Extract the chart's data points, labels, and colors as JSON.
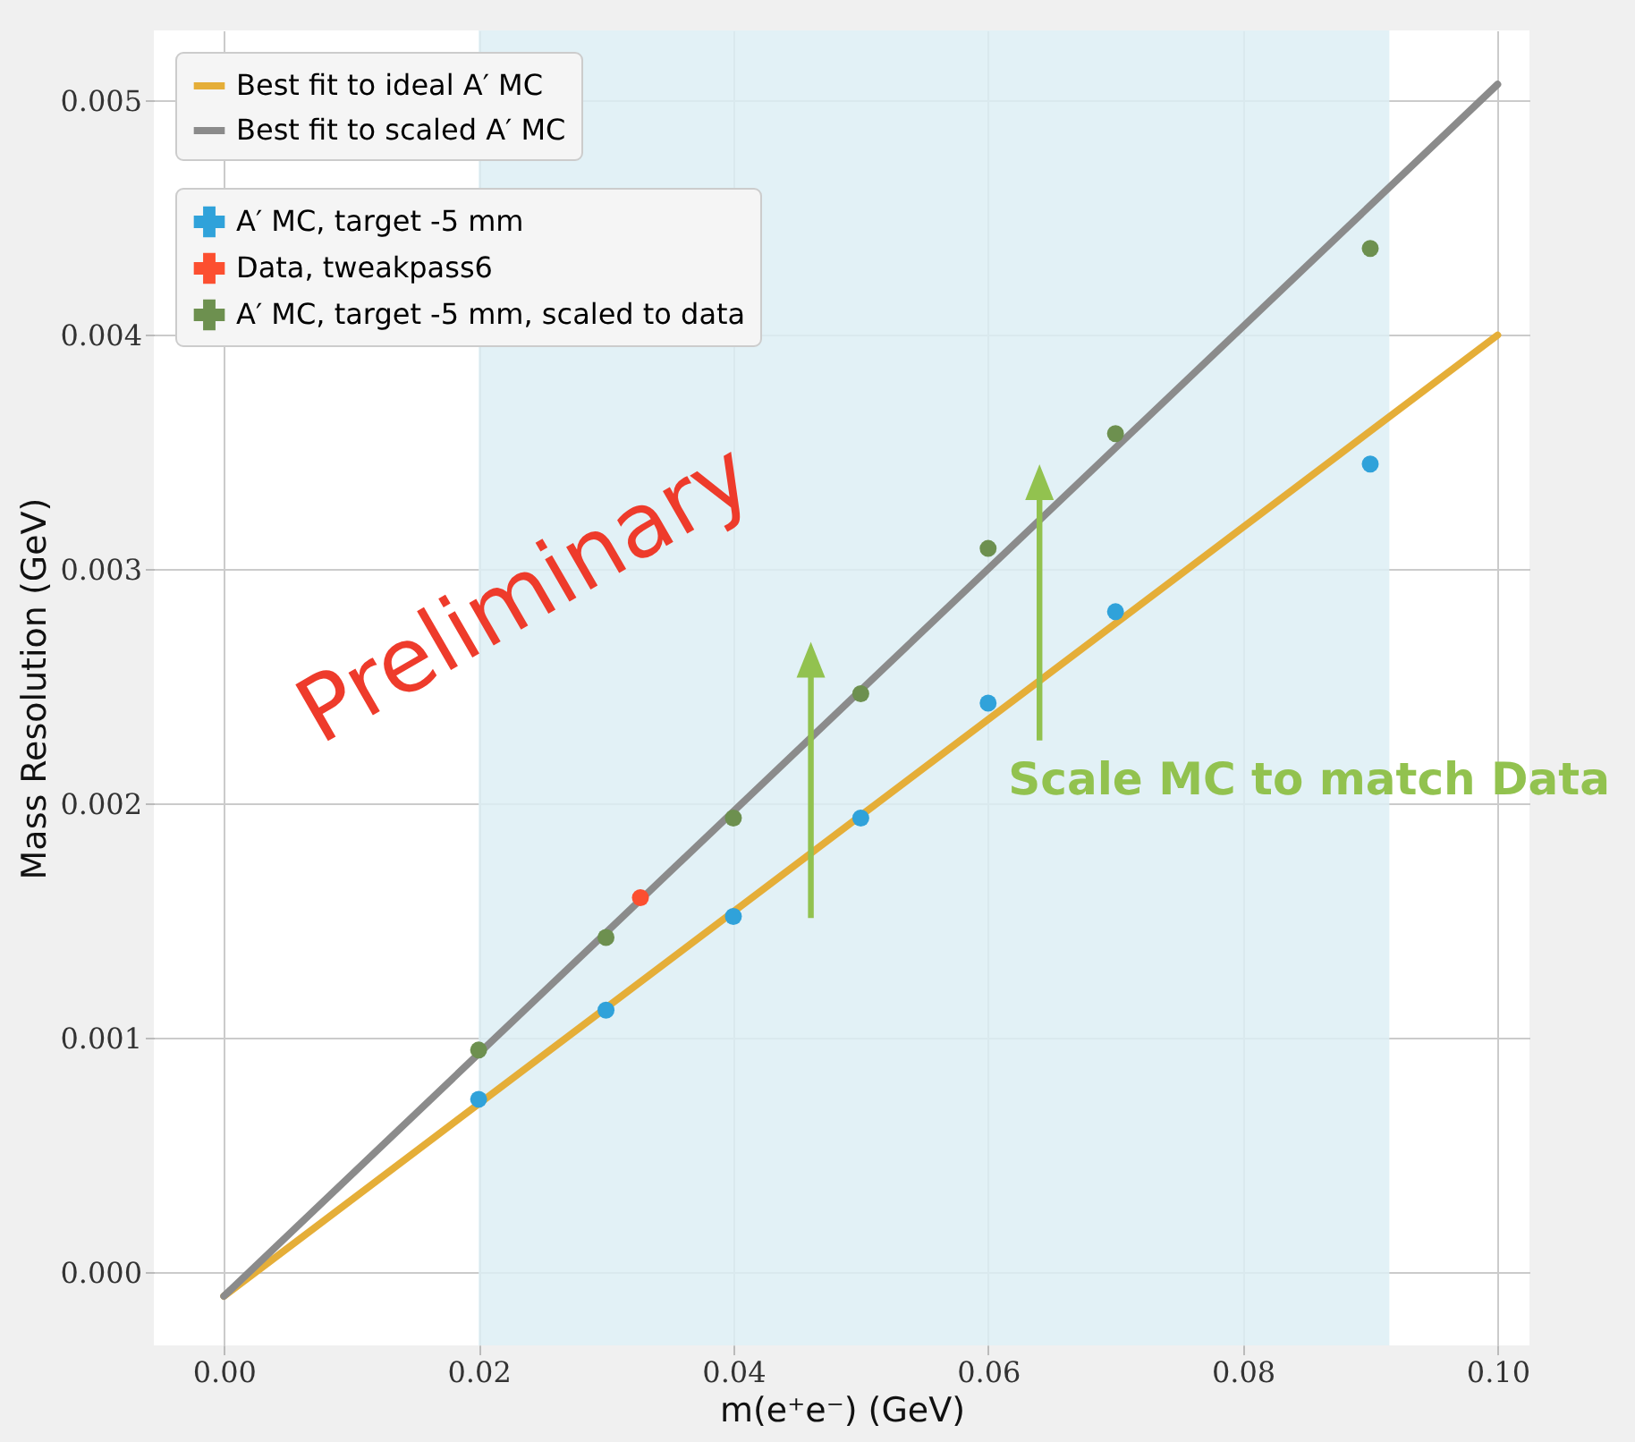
{
  "chart_data": {
    "type": "scatter",
    "xlabel": "m(e⁺e⁻) (GeV)",
    "ylabel": "Mass Resolution (GeV)",
    "xlim": [
      -0.0055,
      0.1025
    ],
    "ylim": [
      -0.00031,
      0.0053
    ],
    "xticks": [
      {
        "value": 0,
        "label": "0.00"
      },
      {
        "value": 0.02,
        "label": "0.02"
      },
      {
        "value": 0.04,
        "label": "0.04"
      },
      {
        "value": 0.06,
        "label": "0.06"
      },
      {
        "value": 0.08,
        "label": "0.08"
      },
      {
        "value": 0.1,
        "label": "0.10"
      }
    ],
    "yticks": [
      {
        "value": 0,
        "label": "0.000"
      },
      {
        "value": 0.001,
        "label": "0.001"
      },
      {
        "value": 0.002,
        "label": "0.002"
      },
      {
        "value": 0.003,
        "label": "0.003"
      },
      {
        "value": 0.004,
        "label": "0.004"
      },
      {
        "value": 0.005,
        "label": "0.005"
      }
    ],
    "grid": true,
    "legend": "top left",
    "marker": "circle",
    "series": [
      {
        "name": "Best fit to ideal A′ MC",
        "type": "line",
        "marker": "none",
        "color": "#e5ae38",
        "x": [
          0,
          0.1
        ],
        "values": [
          -0.0001,
          0.004
        ]
      },
      {
        "name": "Best fit to scaled A′ MC",
        "type": "line",
        "marker": "none",
        "color": "#8b8b8b",
        "x": [
          0,
          0.1
        ],
        "values": [
          -0.0001,
          0.00507
        ]
      },
      {
        "name": "A′ MC, target -5 mm",
        "color": "#30a2da",
        "x": [
          0.02,
          0.03,
          0.04,
          0.05,
          0.06,
          0.07,
          0.09
        ],
        "values": [
          0.00074,
          0.00112,
          0.00152,
          0.00194,
          0.00243,
          0.00282,
          0.00345
        ]
      },
      {
        "name": "Data, tweakpass6",
        "color": "#fc4f30",
        "x": [
          0.0327
        ],
        "values": [
          0.0016
        ]
      },
      {
        "name": "A′ MC, target -5 mm, scaled to data",
        "color": "#6d904f",
        "x": [
          0.02,
          0.03,
          0.04,
          0.05,
          0.06,
          0.07,
          0.09
        ],
        "values": [
          0.00095,
          0.00143,
          0.00194,
          0.00247,
          0.00309,
          0.00358,
          0.00437
        ]
      }
    ],
    "bands": [
      {
        "axis": "x",
        "from": 0.02,
        "to": 0.0915,
        "color": "#ddeef4"
      }
    ],
    "annotations": [
      "Preliminary",
      "Scale MC to match Data"
    ]
  }
}
